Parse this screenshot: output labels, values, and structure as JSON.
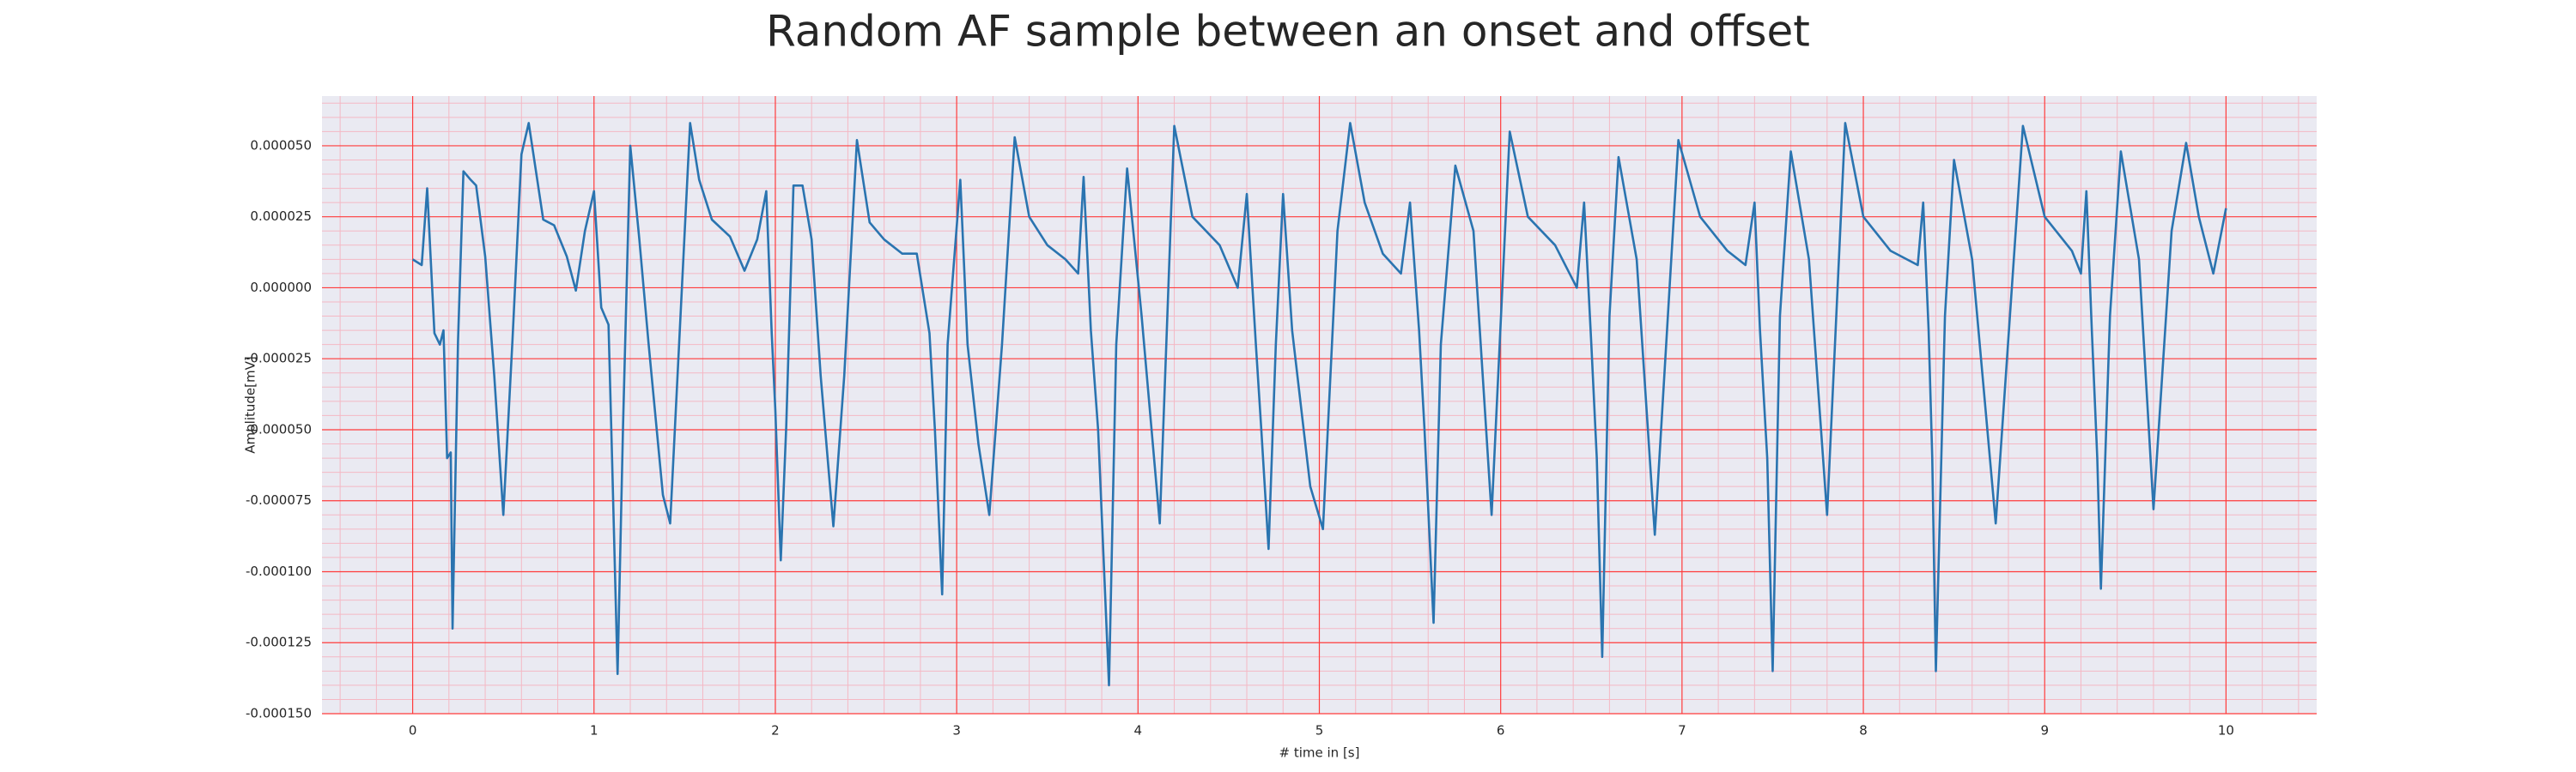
{
  "chart_data": {
    "type": "line",
    "title": "Random AF sample between an onset and offset",
    "xlabel": "# time in [s]",
    "ylabel": "Amplitude[mV]",
    "color": "#2a74b0",
    "grid": true,
    "grid_color": "#ff3b3b",
    "minor_grid": true,
    "minor_grid_color": "#f4b8c4",
    "background": "#eaeaf2",
    "xlim": [
      -0.5,
      10.5
    ],
    "ylim": [
      -0.00015,
      6.75e-05
    ],
    "xticks": [
      0,
      1,
      2,
      3,
      4,
      5,
      6,
      7,
      8,
      9,
      10
    ],
    "yticks": [
      {
        "value": -0.00015,
        "label": "-0.000150"
      },
      {
        "value": -0.000125,
        "label": "-0.000125"
      },
      {
        "value": -0.0001,
        "label": "-0.000100"
      },
      {
        "value": -7.5e-05,
        "label": "-0.000075"
      },
      {
        "value": -5e-05,
        "label": "-0.000050"
      },
      {
        "value": -2.5e-05,
        "label": "-0.000025"
      },
      {
        "value": 0,
        "label": "0.000000"
      },
      {
        "value": 2.5e-05,
        "label": "0.000025"
      },
      {
        "value": 5e-05,
        "label": "0.000050"
      }
    ],
    "x": [
      0,
      0.05,
      0.08,
      0.12,
      0.15,
      0.17,
      0.19,
      0.21,
      0.22,
      0.25,
      0.28,
      0.32,
      0.35,
      0.4,
      0.45,
      0.5,
      0.55,
      0.6,
      0.64,
      0.68,
      0.72,
      0.78,
      0.85,
      0.9,
      0.95,
      1.0,
      1.04,
      1.08,
      1.1,
      1.13,
      1.16,
      1.2,
      1.25,
      1.3,
      1.38,
      1.42,
      1.47,
      1.53,
      1.58,
      1.65,
      1.75,
      1.83,
      1.9,
      1.95,
      1.98,
      2.0,
      2.03,
      2.06,
      2.1,
      2.15,
      2.2,
      2.25,
      2.32,
      2.38,
      2.45,
      2.52,
      2.6,
      2.7,
      2.78,
      2.85,
      2.88,
      2.92,
      2.95,
      3.02,
      3.06,
      3.12,
      3.18,
      3.25,
      3.32,
      3.4,
      3.5,
      3.6,
      3.67,
      3.7,
      3.74,
      3.78,
      3.84,
      3.88,
      3.94,
      4.02,
      4.12,
      4.2,
      4.3,
      4.45,
      4.55,
      4.6,
      4.65,
      4.68,
      4.72,
      4.76,
      4.8,
      4.85,
      4.95,
      5.02,
      5.1,
      5.17,
      5.25,
      5.35,
      5.45,
      5.5,
      5.55,
      5.58,
      5.63,
      5.67,
      5.75,
      5.85,
      5.95,
      6.05,
      6.15,
      6.3,
      6.42,
      6.46,
      6.5,
      6.53,
      6.56,
      6.6,
      6.65,
      6.75,
      6.85,
      6.98,
      7.1,
      7.25,
      7.35,
      7.4,
      7.43,
      7.47,
      7.5,
      7.54,
      7.6,
      7.7,
      7.8,
      7.9,
      8.0,
      8.15,
      8.3,
      8.33,
      8.36,
      8.38,
      8.4,
      8.45,
      8.5,
      8.6,
      8.73,
      8.88,
      9.0,
      9.15,
      9.2,
      9.23,
      9.26,
      9.29,
      9.31,
      9.36,
      9.42,
      9.52,
      9.6,
      9.7,
      9.78,
      9.85,
      9.93,
      10.0
    ],
    "values": [
      1e-05,
      8e-06,
      3.5e-05,
      -1.6e-05,
      -2e-05,
      -1.5e-05,
      -6e-05,
      -5.8e-05,
      -0.00012,
      -1.9e-05,
      4.1e-05,
      3.8e-05,
      3.6e-05,
      1.1e-05,
      -3.1e-05,
      -8e-05,
      -1.9e-05,
      4.7e-05,
      5.8e-05,
      4.1e-05,
      2.4e-05,
      2.2e-05,
      1.1e-05,
      -1e-06,
      2e-05,
      3.4e-05,
      -7e-06,
      -1.3e-05,
      -6.1e-05,
      -0.000136,
      -4.9e-05,
      5e-05,
      1.7e-05,
      -1.9e-05,
      -7.3e-05,
      -8.3e-05,
      -1.9e-05,
      5.8e-05,
      3.8e-05,
      2.4e-05,
      1.8e-05,
      6e-06,
      1.7e-05,
      3.4e-05,
      -1.6e-05,
      -4.3e-05,
      -9.6e-05,
      -4.9e-05,
      3.6e-05,
      3.6e-05,
      1.7e-05,
      -3.1e-05,
      -8.4e-05,
      -3.1e-05,
      5.2e-05,
      2.3e-05,
      1.7e-05,
      1.2e-05,
      1.2e-05,
      -1.6e-05,
      -5e-05,
      -0.000108,
      -2e-05,
      3.8e-05,
      -2e-05,
      -5.5e-05,
      -8e-05,
      -2e-05,
      5.3e-05,
      2.5e-05,
      1.5e-05,
      1e-05,
      5e-06,
      3.9e-05,
      -1.5e-05,
      -5e-05,
      -0.00014,
      -2e-05,
      4.2e-05,
      -1e-05,
      -8.3e-05,
      5.7e-05,
      2.5e-05,
      1.5e-05,
      0.0,
      3.3e-05,
      -2e-05,
      -5e-05,
      -9.2e-05,
      -2e-05,
      3.3e-05,
      -1.5e-05,
      -7e-05,
      -8.5e-05,
      2e-05,
      5.8e-05,
      3e-05,
      1.2e-05,
      5e-06,
      3e-05,
      -1.5e-05,
      -5e-05,
      -0.000118,
      -2e-05,
      4.3e-05,
      2e-05,
      -8e-05,
      5.5e-05,
      2.5e-05,
      1.5e-05,
      0.0,
      3e-05,
      -2e-05,
      -6e-05,
      -0.00013,
      -1e-05,
      4.6e-05,
      1e-05,
      -8.7e-05,
      5.2e-05,
      2.5e-05,
      1.3e-05,
      8e-06,
      3e-05,
      -1.5e-05,
      -6e-05,
      -0.000135,
      -1e-05,
      4.8e-05,
      1e-05,
      -8e-05,
      5.8e-05,
      2.5e-05,
      1.3e-05,
      8e-06,
      3e-05,
      -1.5e-05,
      -6e-05,
      -0.000135,
      -1e-05,
      4.5e-05,
      1e-05,
      -8.3e-05,
      5.7e-05,
      2.5e-05,
      1.3e-05,
      5e-06,
      3.4e-05,
      -1.5e-05,
      -6e-05,
      -0.000106,
      -1e-05,
      4.8e-05,
      1e-05,
      -7.8e-05,
      2e-05,
      5.1e-05,
      2.5e-05,
      5e-06,
      2.8e-05
    ]
  }
}
